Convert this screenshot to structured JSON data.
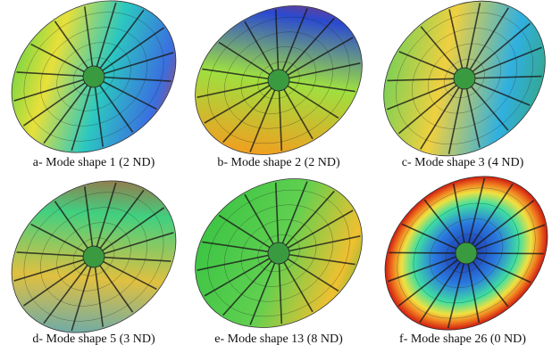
{
  "panels": [
    {
      "caption": "a- Mode shape 1 (2 ND)"
    },
    {
      "caption": "b- Mode shape 2 (2 ND)"
    },
    {
      "caption": "c- Mode shape 3 (4 ND)"
    },
    {
      "caption": "d- Mode shape 5 (3 ND)"
    },
    {
      "caption": "e- Mode shape 13 (8 ND)"
    },
    {
      "caption": "f- Mode shape 26 (0 ND)"
    }
  ]
}
